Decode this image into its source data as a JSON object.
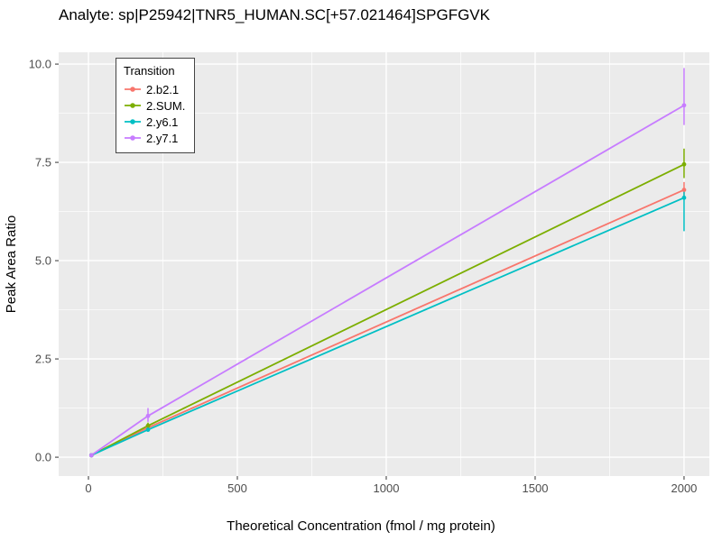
{
  "chart_data": {
    "type": "line",
    "title": "Analyte: sp|P25942|TNR5_HUMAN.SC[+57.021464]SPGFGVK",
    "xlabel": "Theoretical Concentration (fmol / mg protein)",
    "ylabel": "Peak Area Ratio",
    "xlim": [
      -100,
      2085
    ],
    "ylim": [
      -0.48,
      10.3
    ],
    "x_ticks": [
      0,
      500,
      1000,
      1500,
      2000
    ],
    "x_tick_labels": [
      "0",
      "500",
      "1000",
      "1500",
      "2000"
    ],
    "x_minor": [
      250,
      750,
      1250,
      1750
    ],
    "y_ticks": [
      0.0,
      2.5,
      5.0,
      7.5,
      10.0
    ],
    "y_tick_labels": [
      "0.0",
      "2.5",
      "5.0",
      "7.5",
      "10.0"
    ],
    "y_minor": [
      1.25,
      3.75,
      6.25,
      8.75
    ],
    "panel_bg": "#EBEBEB",
    "grid_color": "#FFFFFF",
    "grid": true,
    "legend_title": "Transition",
    "legend_position": "top-left-inside",
    "series": [
      {
        "name": "2.b2.1",
        "color": "#F8766D",
        "x": [
          10,
          200,
          2000
        ],
        "y": [
          0.05,
          0.75,
          6.8
        ],
        "ymin": [
          null,
          0.7,
          6.6
        ],
        "ymax": [
          null,
          0.8,
          7.0
        ]
      },
      {
        "name": "2.SUM.",
        "color": "#7CAE00",
        "x": [
          10,
          200,
          2000
        ],
        "y": [
          0.05,
          0.8,
          7.45
        ],
        "ymin": [
          null,
          0.72,
          7.1
        ],
        "ymax": [
          null,
          0.88,
          7.85
        ]
      },
      {
        "name": "2.y6.1",
        "color": "#00BFC4",
        "x": [
          10,
          200,
          2000
        ],
        "y": [
          0.05,
          0.7,
          6.6
        ],
        "ymin": [
          null,
          0.65,
          5.75
        ],
        "ymax": [
          null,
          0.75,
          6.75
        ]
      },
      {
        "name": "2.y7.1",
        "color": "#C77CFF",
        "x": [
          10,
          200,
          2000
        ],
        "y": [
          0.05,
          1.05,
          8.95
        ],
        "ymin": [
          null,
          0.9,
          8.45
        ],
        "ymax": [
          null,
          1.25,
          9.9
        ]
      }
    ]
  }
}
